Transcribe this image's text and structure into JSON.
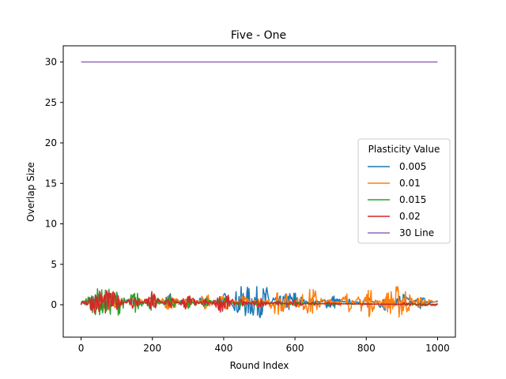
{
  "chart_data": {
    "type": "line",
    "title": "Five - One",
    "xlabel": "Round Index",
    "ylabel": "Overlap Size",
    "xlim": [
      -50,
      1050
    ],
    "ylim": [
      -4,
      32
    ],
    "xticks": [
      0,
      200,
      400,
      600,
      800,
      1000
    ],
    "yticks": [
      0,
      5,
      10,
      15,
      20,
      25,
      30
    ],
    "grid": false,
    "legend": {
      "title": "Plasticity Value",
      "placement": "center-right"
    },
    "series": [
      {
        "name": "0.005",
        "color": "#1f77b4",
        "x": [
          0,
          50,
          100,
          150,
          200,
          250,
          300,
          350,
          400,
          450,
          500,
          550,
          600,
          650,
          700,
          750,
          800,
          850,
          900,
          950,
          1000
        ],
        "values": [
          0.0,
          1.2,
          -0.6,
          1.0,
          -0.8,
          1.1,
          -0.5,
          0.9,
          -1.5,
          2.7,
          2.9,
          0.6,
          1.5,
          -0.7,
          1.2,
          -0.4,
          0.8,
          -1.2,
          1.4,
          -0.9,
          0.2
        ],
        "band": 1.2
      },
      {
        "name": "0.01",
        "color": "#ff7f0e",
        "x": [
          0,
          50,
          100,
          150,
          200,
          250,
          300,
          350,
          400,
          450,
          500,
          550,
          600,
          650,
          700,
          750,
          800,
          850,
          900,
          950,
          1000
        ],
        "values": [
          0.0,
          1.0,
          -1.0,
          0.9,
          -0.7,
          1.3,
          -0.9,
          1.2,
          -1.2,
          1.0,
          -0.8,
          1.8,
          0.4,
          1.9,
          -0.6,
          1.4,
          -2.4,
          1.0,
          2.5,
          -0.8,
          0.1
        ],
        "band": 1.3
      },
      {
        "name": "0.015",
        "color": "#2ca02c",
        "x": [
          0,
          50,
          100,
          150,
          200,
          250,
          300,
          350,
          400,
          450,
          500,
          550,
          600,
          650,
          700,
          750,
          800,
          850,
          900,
          950,
          1000
        ],
        "values": [
          0.0,
          2.1,
          2.5,
          -2.1,
          1.6,
          -1.4,
          1.3,
          -1.1,
          1.1,
          -0.9,
          0.8,
          -0.6,
          0.6,
          -0.5,
          0.4,
          -0.3,
          0.3,
          -0.2,
          0.1,
          -0.1,
          0.0
        ],
        "band": 1.1
      },
      {
        "name": "0.02",
        "color": "#d62728",
        "x": [
          0,
          50,
          100,
          150,
          200,
          250,
          300,
          350,
          400,
          450,
          500,
          550,
          600,
          650,
          700,
          750,
          800,
          850,
          900,
          950,
          1000
        ],
        "values": [
          0.0,
          1.9,
          1.2,
          -1.3,
          1.8,
          -1.2,
          1.7,
          -1.0,
          2.4,
          -0.9,
          1.3,
          -0.7,
          1.0,
          -0.5,
          0.6,
          -0.3,
          0.3,
          -0.1,
          0.0,
          0.0,
          0.0
        ],
        "band": 1.1
      },
      {
        "name": "30 Line",
        "color": "#9467bd",
        "x": [
          0,
          1000
        ],
        "values": [
          30,
          30
        ],
        "band": 0
      }
    ]
  }
}
